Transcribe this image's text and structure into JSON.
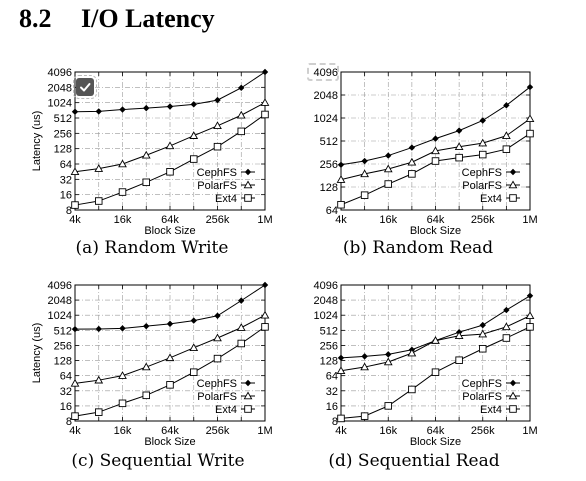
{
  "section": {
    "number": "8.2",
    "title": "I/O Latency"
  },
  "icons": {
    "check": "checkmark-icon",
    "frame": "dashed-frame-icon"
  },
  "chart_data": [
    {
      "type": "line",
      "title": "(a) Random Write",
      "xlabel": "Block Size",
      "ylabel": "Latency (us)",
      "x_ticks": [
        "4k",
        "16k",
        "64k",
        "256k",
        "1M"
      ],
      "y_ticks": [
        "8",
        "16",
        "32",
        "64",
        "128",
        "256",
        "512",
        "1024",
        "2048",
        "4096"
      ],
      "ylim": [
        8,
        4096
      ],
      "y_scale": "log2",
      "legend_position": "bottom-right",
      "grid": true,
      "x": [
        "4k",
        "8k",
        "16k",
        "32k",
        "64k",
        "128k",
        "256k",
        "512k",
        "1M"
      ],
      "series": [
        {
          "name": "CephFS",
          "marker": "diamond",
          "values": [
            680,
            690,
            750,
            800,
            860,
            950,
            1150,
            2000,
            4096
          ]
        },
        {
          "name": "PolarFS",
          "marker": "triangle",
          "values": [
            45,
            52,
            64,
            95,
            145,
            230,
            360,
            580,
            1024
          ]
        },
        {
          "name": "Ext4",
          "marker": "square",
          "values": [
            10,
            12,
            18,
            28,
            45,
            80,
            140,
            280,
            600
          ]
        }
      ]
    },
    {
      "type": "line",
      "title": "(b) Random Read",
      "xlabel": "Block Size",
      "ylabel": "",
      "x_ticks": [
        "4k",
        "16k",
        "64k",
        "256k",
        "1M"
      ],
      "y_ticks": [
        "64",
        "128",
        "256",
        "512",
        "1024",
        "2048",
        "4096"
      ],
      "ylim": [
        64,
        4096
      ],
      "y_scale": "log2",
      "legend_position": "bottom-right",
      "grid": true,
      "x": [
        "4k",
        "8k",
        "16k",
        "32k",
        "64k",
        "128k",
        "256k",
        "512k",
        "1M"
      ],
      "series": [
        {
          "name": "CephFS",
          "marker": "diamond",
          "values": [
            250,
            280,
            330,
            420,
            550,
            700,
            950,
            1500,
            2600
          ]
        },
        {
          "name": "PolarFS",
          "marker": "triangle",
          "values": [
            160,
            190,
            220,
            270,
            380,
            430,
            480,
            600,
            1000
          ]
        },
        {
          "name": "Ext4",
          "marker": "square",
          "values": [
            75,
            100,
            140,
            190,
            280,
            310,
            340,
            400,
            640
          ]
        }
      ]
    },
    {
      "type": "line",
      "title": "(c) Sequential Write",
      "xlabel": "Block Size",
      "ylabel": "Latency (us)",
      "x_ticks": [
        "4k",
        "16k",
        "64k",
        "256k",
        "1M"
      ],
      "y_ticks": [
        "8",
        "16",
        "32",
        "64",
        "128",
        "256",
        "512",
        "1024",
        "2048",
        "4096"
      ],
      "ylim": [
        8,
        4096
      ],
      "y_scale": "log2",
      "legend_position": "bottom-right",
      "grid": true,
      "x": [
        "4k",
        "8k",
        "16k",
        "32k",
        "64k",
        "128k",
        "256k",
        "512k",
        "1M"
      ],
      "series": [
        {
          "name": "CephFS",
          "marker": "diamond",
          "values": [
            540,
            545,
            560,
            620,
            690,
            800,
            1000,
            2000,
            4096
          ]
        },
        {
          "name": "PolarFS",
          "marker": "triangle",
          "values": [
            45,
            52,
            64,
            95,
            145,
            230,
            360,
            580,
            1024
          ]
        },
        {
          "name": "Ext4",
          "marker": "square",
          "values": [
            10,
            12,
            18,
            26,
            42,
            75,
            140,
            280,
            600
          ]
        }
      ]
    },
    {
      "type": "line",
      "title": "(d) Sequential Read",
      "xlabel": "Block Size",
      "ylabel": "",
      "x_ticks": [
        "4k",
        "16k",
        "64k",
        "256k",
        "1M"
      ],
      "y_ticks": [
        "8",
        "16",
        "32",
        "64",
        "128",
        "256",
        "512",
        "1024",
        "2048",
        "4096"
      ],
      "ylim": [
        8,
        4096
      ],
      "y_scale": "log2",
      "legend_position": "bottom-right",
      "grid": true,
      "x": [
        "4k",
        "8k",
        "16k",
        "32k",
        "64k",
        "128k",
        "256k",
        "512k",
        "1M"
      ],
      "series": [
        {
          "name": "CephFS",
          "marker": "diamond",
          "values": [
            145,
            155,
            170,
            210,
            320,
            470,
            650,
            1300,
            2500
          ]
        },
        {
          "name": "PolarFS",
          "marker": "triangle",
          "values": [
            80,
            95,
            120,
            180,
            320,
            400,
            430,
            600,
            1000
          ]
        },
        {
          "name": "Ext4",
          "marker": "square",
          "values": [
            9,
            10,
            16,
            34,
            75,
            130,
            220,
            360,
            600
          ]
        }
      ]
    }
  ]
}
